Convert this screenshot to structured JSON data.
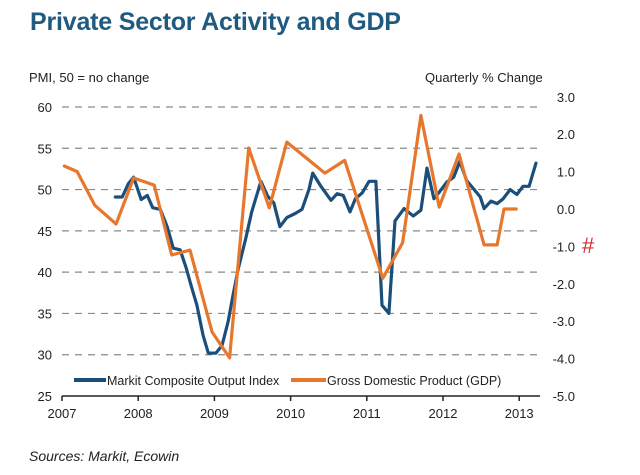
{
  "title": "Private Sector Activity and GDP",
  "source": "Sources: Markit, Ecowin",
  "marker_symbol": "#",
  "colors": {
    "pmi": "#1b4f7a",
    "gdp": "#e8772e",
    "title": "#1f5a80",
    "marker": "#d32f2f",
    "grid": "#8a8a8a"
  },
  "chart_data": {
    "type": "line",
    "title": "Private Sector Activity and GDP",
    "ylabel_left": "PMI, 50 = no change",
    "ylabel_right": "Quarterly % Change",
    "xlabel": "",
    "xlim": [
      2007,
      2013.3
    ],
    "ylim_left": [
      25,
      60
    ],
    "ylim_right": [
      -5.0,
      3.0
    ],
    "x_ticks": [
      "2007",
      "2008",
      "2009",
      "2010",
      "2011",
      "2012",
      "2013"
    ],
    "y_ticks_left": [
      "60",
      "55",
      "50",
      "45",
      "40",
      "35",
      "30",
      "25"
    ],
    "y_ticks_right": [
      "3.0",
      "2.0",
      "1.0",
      "0.0",
      "-1.0",
      "-2.0",
      "-3.0",
      "-4.0",
      "-5.0"
    ],
    "grid": "horizontal-dashed",
    "legend_position": "bottom-inside",
    "series": [
      {
        "name": "Markit Composite Output Index",
        "axis": "left",
        "x": [
          2007.7,
          2007.79,
          2007.87,
          2007.94,
          2008.04,
          2008.12,
          2008.19,
          2008.29,
          2008.38,
          2008.46,
          2008.55,
          2008.63,
          2008.69,
          2008.77,
          2008.85,
          2008.92,
          2009.02,
          2009.1,
          2009.18,
          2009.24,
          2009.31,
          2009.41,
          2009.49,
          2009.61,
          2009.7,
          2009.78,
          2009.86,
          2009.95,
          2010.06,
          2010.15,
          2010.24,
          2010.29,
          2010.39,
          2010.46,
          2010.53,
          2010.61,
          2010.69,
          2010.78,
          2010.85,
          2010.94,
          2011.03,
          2011.12,
          2011.2,
          2011.29,
          2011.37,
          2011.49,
          2011.61,
          2011.71,
          2011.79,
          2011.88,
          2011.96,
          2012.05,
          2012.14,
          2012.22,
          2012.31,
          2012.41,
          2012.49,
          2012.54,
          2012.63,
          2012.71,
          2012.79,
          2012.88,
          2012.97,
          2013.05,
          2013.13,
          2013.22
        ],
        "values": [
          49.1,
          49.1,
          50.7,
          51.5,
          48.8,
          49.3,
          47.8,
          47.6,
          45.5,
          42.9,
          42.7,
          40.5,
          38.5,
          36.0,
          32.4,
          30.2,
          30.2,
          31.1,
          34.0,
          37.0,
          40.3,
          44.0,
          47.3,
          51.0,
          49.2,
          48.4,
          45.5,
          46.6,
          47.1,
          47.6,
          50.0,
          52.0,
          50.5,
          49.6,
          48.7,
          49.5,
          49.3,
          47.3,
          48.9,
          49.6,
          51.0,
          51.0,
          36.0,
          35.0,
          46.2,
          47.7,
          46.8,
          47.5,
          52.6,
          48.9,
          49.8,
          50.9,
          51.5,
          53.4,
          51.1,
          50.0,
          49.1,
          47.7,
          48.6,
          48.3,
          48.9,
          50.0,
          49.4,
          50.4,
          50.4,
          53.2
        ]
      },
      {
        "name": "Gross Domestic Product (GDP)",
        "axis": "right",
        "x": [
          2007.03,
          2007.2,
          2007.43,
          2007.71,
          2007.94,
          2008.21,
          2008.44,
          2008.68,
          2008.97,
          2009.2,
          2009.45,
          2009.72,
          2009.95,
          2010.45,
          2010.71,
          2011.21,
          2011.47,
          2011.71,
          2011.95,
          2012.21,
          2012.54,
          2012.71,
          2012.8,
          2012.96
        ],
        "values": [
          1.15,
          1.0,
          0.1,
          -0.4,
          0.83,
          0.64,
          -1.23,
          -1.1,
          -3.29,
          -3.98,
          1.63,
          0.03,
          1.79,
          0.96,
          1.3,
          -1.85,
          -0.9,
          2.5,
          0.05,
          1.47,
          -0.96,
          -0.96,
          0.0,
          0.0
        ]
      }
    ]
  }
}
